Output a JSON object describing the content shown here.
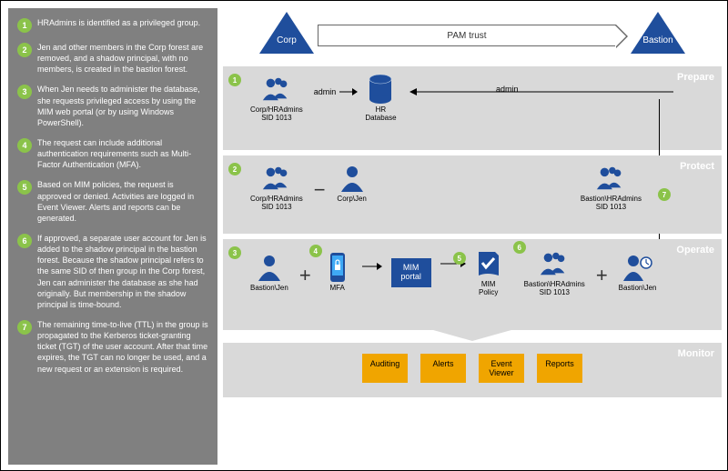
{
  "colors": {
    "sidebar_bg": "#808080",
    "row_bg": "#d9d9d9",
    "accent_blue": "#1f4e9c",
    "step_green": "#8bc34a",
    "monitor_btn": "#f0a500",
    "text_white": "#ffffff",
    "text_black": "#000000"
  },
  "sidebar": {
    "items": [
      {
        "n": "1",
        "t": "HRAdmins is identified as a privileged group."
      },
      {
        "n": "2",
        "t": "Jen and other members in the Corp forest are removed, and a shadow principal, with no members, is created in the bastion forest."
      },
      {
        "n": "3",
        "t": "When Jen needs to administer the database, she requests privileged access by using the MIM web portal (or by using Windows PowerShell)."
      },
      {
        "n": "4",
        "t": "The request can include additional authentication requirements such as Multi-Factor Authentication (MFA)."
      },
      {
        "n": "5",
        "t": "Based on MIM policies, the request is approved or denied. Activities are logged in Event Viewer. Alerts and reports can be generated."
      },
      {
        "n": "6",
        "t": "If approved, a separate user account for Jen is added to the shadow principal in the bastion forest. Because the shadow principal refers to the same SID of then group in the Corp forest, Jen can administer the database as she had originally. But membership in the shadow principal is time-bound."
      },
      {
        "n": "7",
        "t": "The remaining time-to-live (TTL) in the group is propagated to the Kerberos ticket-granting ticket (TGT) of the user account. After that time expires, the TGT can no longer be used, and a new request or an extension is required."
      }
    ]
  },
  "header": {
    "left_tri": "Corp",
    "right_tri": "Bastion",
    "arrow_label": "PAM trust"
  },
  "phases": {
    "prepare": {
      "label": "Prepare",
      "group": "Corp/HRAdmins\nSID 1013",
      "db": "HR\nDatabase",
      "admin": "admin",
      "admin2": "admin"
    },
    "protect": {
      "label": "Protect",
      "group_left": "Corp/HRAdmins\nSID 1013",
      "user_left": "Corp\\Jen",
      "group_right": "Bastion\\HRAdmins\nSID 1013"
    },
    "operate": {
      "label": "Operate",
      "user1": "Bastion\\Jen",
      "mfa": "MFA",
      "portal": "MIM\nportal",
      "policy": "MIM\nPolicy",
      "group": "Bastion\\HRAdmins\nSID 1013",
      "user2": "Bastion\\Jen"
    },
    "monitor": {
      "label": "Monitor",
      "buttons": [
        "Auditing",
        "Alerts",
        "Event\nViewer",
        "Reports"
      ]
    }
  },
  "step_badges": [
    "1",
    "2",
    "3",
    "4",
    "5",
    "6",
    "7"
  ]
}
